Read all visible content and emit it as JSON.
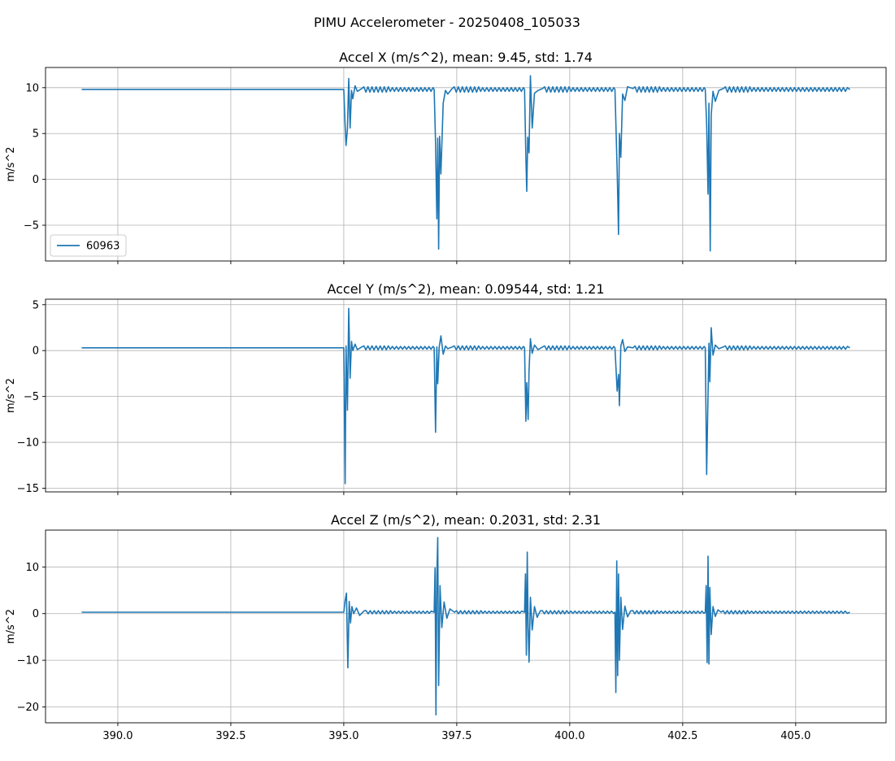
{
  "figure": {
    "suptitle": "PIMU Accelerometer - 20250408_105033"
  },
  "style": {
    "line_color": "#1f77b4",
    "grid_color": "#b0b0b0",
    "axis_color": "#000000"
  },
  "chart_data": [
    {
      "type": "line",
      "title": "Accel X (m/s^2), mean: 9.45, std: 1.74",
      "ylabel": "m/s^2",
      "xlim": [
        388.4,
        407.0
      ],
      "ylim": [
        -8.9,
        12.2
      ],
      "xticks": [
        390.0,
        392.5,
        395.0,
        397.5,
        400.0,
        402.5,
        405.0
      ],
      "xtick_labels": [
        "390.0",
        "392.5",
        "395.0",
        "397.5",
        "400.0",
        "402.5",
        "405.0"
      ],
      "yticks": [
        -5,
        0,
        5,
        10
      ],
      "ytick_labels": [
        "−5",
        "0",
        "5",
        "10"
      ],
      "show_xtick_labels": false,
      "grid": true,
      "legend": {
        "placement": "lower-left",
        "entries": [
          "60963"
        ]
      },
      "series": [
        {
          "name": "60963",
          "baseline": 9.8,
          "x_start": 389.2,
          "x_end": 406.2,
          "ripple_start": 395.1,
          "ripple_amp": 0.35,
          "x": [
            395.0,
            395.03,
            395.05,
            395.08,
            395.11,
            395.14,
            395.17,
            395.2,
            395.25,
            395.3,
            395.4,
            397.0,
            397.03,
            397.06,
            397.08,
            397.1,
            397.12,
            397.15,
            397.2,
            397.25,
            397.3,
            397.4,
            399.0,
            399.03,
            399.05,
            399.07,
            399.1,
            399.13,
            399.17,
            399.22,
            399.3,
            399.4,
            401.0,
            401.05,
            401.08,
            401.1,
            401.13,
            401.17,
            401.22,
            401.28,
            401.4,
            403.0,
            403.03,
            403.06,
            403.08,
            403.11,
            403.13,
            403.17,
            403.22,
            403.3,
            403.4
          ],
          "y": [
            9.8,
            5.8,
            3.7,
            5.5,
            11.0,
            5.6,
            9.7,
            8.8,
            10.2,
            9.6,
            9.9,
            9.8,
            4.0,
            -4.3,
            4.5,
            -7.6,
            4.7,
            0.6,
            8.3,
            9.7,
            9.3,
            9.9,
            9.8,
            2.5,
            -1.3,
            4.6,
            2.9,
            11.3,
            5.6,
            9.4,
            9.7,
            9.9,
            9.8,
            1.0,
            -6.0,
            5.0,
            2.4,
            9.3,
            8.6,
            10.1,
            9.9,
            9.8,
            6.0,
            -1.6,
            8.3,
            -7.8,
            7.0,
            9.6,
            8.5,
            9.7,
            9.9
          ]
        }
      ]
    },
    {
      "type": "line",
      "title": "Accel Y (m/s^2), mean: 0.09544, std: 1.21",
      "ylabel": "m/s^2",
      "xlim": [
        388.4,
        407.0
      ],
      "ylim": [
        -15.4,
        5.6
      ],
      "xticks": [
        390.0,
        392.5,
        395.0,
        397.5,
        400.0,
        402.5,
        405.0
      ],
      "xtick_labels": [
        "390.0",
        "392.5",
        "395.0",
        "397.5",
        "400.0",
        "402.5",
        "405.0"
      ],
      "yticks": [
        -15,
        -10,
        -5,
        0,
        5
      ],
      "ytick_labels": [
        "−15",
        "−10",
        "−5",
        "0",
        "5"
      ],
      "show_xtick_labels": false,
      "grid": true,
      "series": [
        {
          "name": "",
          "baseline": 0.3,
          "x_start": 389.2,
          "x_end": 406.2,
          "ripple_start": 395.1,
          "ripple_amp": 0.25,
          "x": [
            395.0,
            395.03,
            395.05,
            395.08,
            395.11,
            395.14,
            395.17,
            395.2,
            395.25,
            395.3,
            395.4,
            397.0,
            397.03,
            397.06,
            397.08,
            397.11,
            397.15,
            397.2,
            397.25,
            397.3,
            397.4,
            399.0,
            399.03,
            399.05,
            399.08,
            399.1,
            399.13,
            399.17,
            399.22,
            399.3,
            399.4,
            401.0,
            401.05,
            401.08,
            401.1,
            401.13,
            401.17,
            401.22,
            401.28,
            401.4,
            403.0,
            403.03,
            403.05,
            403.08,
            403.1,
            403.13,
            403.17,
            403.22,
            403.3,
            403.4
          ],
          "y": [
            0.3,
            -14.5,
            0.5,
            -6.5,
            4.6,
            -3.0,
            1.0,
            0.0,
            0.7,
            0.1,
            0.4,
            0.3,
            -8.9,
            0.4,
            -3.6,
            0.3,
            1.6,
            -0.4,
            0.5,
            0.2,
            0.4,
            0.3,
            -7.7,
            -3.5,
            -7.5,
            -2.2,
            1.3,
            -0.3,
            0.6,
            0.1,
            0.4,
            0.3,
            -4.4,
            -2.6,
            -6.0,
            0.5,
            1.2,
            -0.1,
            0.4,
            0.3,
            0.3,
            -13.5,
            -7.8,
            0.8,
            -3.4,
            2.5,
            -0.5,
            0.6,
            0.2,
            0.4
          ]
        }
      ]
    },
    {
      "type": "line",
      "title": "Accel Z (m/s^2), mean: 0.2031, std: 2.31",
      "ylabel": "m/s^2",
      "xlim": [
        388.4,
        407.0
      ],
      "ylim": [
        -23.4,
        17.9
      ],
      "xticks": [
        390.0,
        392.5,
        395.0,
        397.5,
        400.0,
        402.5,
        405.0
      ],
      "xtick_labels": [
        "390.0",
        "392.5",
        "395.0",
        "397.5",
        "400.0",
        "402.5",
        "405.0"
      ],
      "yticks": [
        -20,
        -10,
        0,
        10
      ],
      "ytick_labels": [
        "−20",
        "−10",
        "0",
        "10"
      ],
      "show_xtick_labels": true,
      "grid": true,
      "series": [
        {
          "name": "",
          "baseline": 0.3,
          "x_start": 389.2,
          "x_end": 406.2,
          "ripple_start": 395.1,
          "ripple_amp": 0.4,
          "x": [
            395.0,
            395.03,
            395.06,
            395.09,
            395.12,
            395.15,
            395.18,
            395.22,
            395.28,
            395.35,
            395.45,
            397.0,
            397.02,
            397.04,
            397.06,
            397.08,
            397.1,
            397.13,
            397.17,
            397.22,
            397.28,
            397.35,
            397.45,
            399.0,
            399.02,
            399.04,
            399.06,
            399.08,
            399.1,
            399.13,
            399.17,
            399.22,
            399.28,
            399.35,
            401.0,
            401.02,
            401.04,
            401.06,
            401.08,
            401.1,
            401.13,
            401.17,
            401.22,
            401.28,
            401.35,
            403.0,
            403.02,
            403.04,
            403.06,
            403.08,
            403.1,
            403.13,
            403.17,
            403.22,
            403.28,
            403.35
          ],
          "y": [
            0.3,
            2.8,
            4.4,
            -11.6,
            2.6,
            -2.0,
            1.5,
            0.0,
            1.2,
            -0.4,
            0.6,
            0.3,
            9.8,
            -21.7,
            8.0,
            16.3,
            -15.4,
            6.0,
            -3.0,
            2.5,
            -1.0,
            1.0,
            0.3,
            0.3,
            8.5,
            -8.9,
            13.2,
            -3.0,
            -10.4,
            3.5,
            -3.5,
            1.5,
            -0.8,
            0.6,
            0.3,
            -16.9,
            11.3,
            -13.3,
            8.5,
            -10.0,
            3.5,
            -3.4,
            1.6,
            -0.7,
            0.6,
            0.3,
            6.0,
            -10.5,
            12.3,
            -10.8,
            5.6,
            -4.5,
            1.5,
            -0.6,
            0.8,
            0.3
          ]
        }
      ]
    }
  ]
}
